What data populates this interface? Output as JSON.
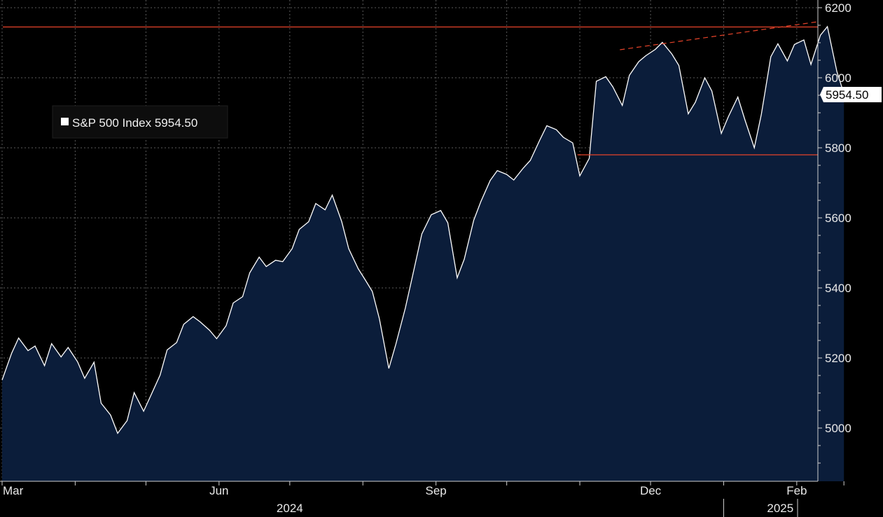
{
  "chart_data": {
    "type": "area",
    "title": "",
    "xlabel": "",
    "ylabel": "",
    "ylim": [
      4850,
      6200
    ],
    "yticks": [
      5000,
      5200,
      5400,
      5600,
      5800,
      6000,
      6200
    ],
    "ytick_labels": [
      "5000",
      "5200",
      "5400",
      "5600",
      "5800",
      "6000",
      "6200"
    ],
    "xrange": [
      "2024-03-01",
      "2025-02-21"
    ],
    "month_labels": [
      {
        "date": "2024-03-01",
        "label": "Mar"
      },
      {
        "date": "2024-06-01",
        "label": "Jun"
      },
      {
        "date": "2024-09-01",
        "label": "Sep"
      },
      {
        "date": "2024-12-01",
        "label": "Dec"
      },
      {
        "date": "2025-02-01",
        "label": "Feb"
      }
    ],
    "month_ticks": [
      "2024-03-01",
      "2024-04-01",
      "2024-05-01",
      "2024-06-01",
      "2024-07-01",
      "2024-08-01",
      "2024-09-01",
      "2024-10-01",
      "2024-11-01",
      "2024-12-01",
      "2025-01-01",
      "2025-02-01"
    ],
    "year_labels": [
      {
        "date": "2024-07-01",
        "label": "2024"
      },
      {
        "date": "2025-01-25",
        "label": "2025"
      }
    ],
    "year_divider": "2025-01-01",
    "grid": true,
    "legend": {
      "position": "top-left",
      "label": "S&P 500 Index 5954.50"
    },
    "last_value_label": "5954.50",
    "colors": {
      "background": "#000000",
      "line": "#ffffff",
      "fill": "#0b1d3a",
      "levels": "#e8442a",
      "grid": "#5a5a5a"
    },
    "series": [
      {
        "name": "S&P 500 Index",
        "x": [
          "2024-03-01",
          "2024-03-05",
          "2024-03-08",
          "2024-03-12",
          "2024-03-15",
          "2024-03-19",
          "2024-03-22",
          "2024-03-26",
          "2024-03-29",
          "2024-04-02",
          "2024-04-05",
          "2024-04-09",
          "2024-04-12",
          "2024-04-16",
          "2024-04-19",
          "2024-04-23",
          "2024-04-26",
          "2024-04-30",
          "2024-05-03",
          "2024-05-07",
          "2024-05-10",
          "2024-05-14",
          "2024-05-17",
          "2024-05-21",
          "2024-05-24",
          "2024-05-28",
          "2024-05-31",
          "2024-06-04",
          "2024-06-07",
          "2024-06-11",
          "2024-06-14",
          "2024-06-18",
          "2024-06-21",
          "2024-06-25",
          "2024-06-28",
          "2024-07-02",
          "2024-07-05",
          "2024-07-09",
          "2024-07-12",
          "2024-07-16",
          "2024-07-19",
          "2024-07-23",
          "2024-07-26",
          "2024-07-30",
          "2024-08-02",
          "2024-08-05",
          "2024-08-08",
          "2024-08-12",
          "2024-08-15",
          "2024-08-19",
          "2024-08-22",
          "2024-08-26",
          "2024-08-30",
          "2024-09-03",
          "2024-09-06",
          "2024-09-10",
          "2024-09-13",
          "2024-09-17",
          "2024-09-20",
          "2024-09-24",
          "2024-09-27",
          "2024-10-01",
          "2024-10-04",
          "2024-10-08",
          "2024-10-11",
          "2024-10-15",
          "2024-10-18",
          "2024-10-22",
          "2024-10-25",
          "2024-10-29",
          "2024-11-01",
          "2024-11-05",
          "2024-11-08",
          "2024-11-12",
          "2024-11-15",
          "2024-11-19",
          "2024-11-22",
          "2024-11-26",
          "2024-11-29",
          "2024-12-03",
          "2024-12-06",
          "2024-12-10",
          "2024-12-13",
          "2024-12-17",
          "2024-12-20",
          "2024-12-24",
          "2024-12-27",
          "2024-12-31",
          "2025-01-03",
          "2025-01-07",
          "2025-01-10",
          "2025-01-14",
          "2025-01-17",
          "2025-01-21",
          "2025-01-24",
          "2025-01-28",
          "2025-01-31",
          "2025-02-04",
          "2025-02-07",
          "2025-02-11",
          "2025-02-14",
          "2025-02-18",
          "2025-02-21"
        ],
        "values": [
          5137,
          5213,
          5257,
          5221,
          5234,
          5178,
          5241,
          5203,
          5230,
          5189,
          5142,
          5188,
          5071,
          5037,
          4985,
          5021,
          5101,
          5048,
          5092,
          5151,
          5223,
          5244,
          5296,
          5318,
          5303,
          5279,
          5255,
          5292,
          5357,
          5375,
          5443,
          5488,
          5461,
          5479,
          5475,
          5512,
          5567,
          5589,
          5641,
          5623,
          5665,
          5590,
          5512,
          5455,
          5423,
          5390,
          5312,
          5170,
          5240,
          5342,
          5432,
          5554,
          5609,
          5621,
          5586,
          5429,
          5482,
          5593,
          5646,
          5707,
          5735,
          5724,
          5708,
          5742,
          5764,
          5822,
          5863,
          5852,
          5830,
          5814,
          5720,
          5770,
          5990,
          6003,
          5974,
          5921,
          6007,
          6046,
          6063,
          6081,
          6101,
          6068,
          6035,
          5897,
          5930,
          6000,
          5962,
          5841,
          5889,
          5945,
          5880,
          5800,
          5896,
          6060,
          6097,
          6048,
          6095,
          6108,
          6038,
          6121,
          6146,
          6018,
          5954.5
        ]
      }
    ],
    "annotations": [
      {
        "type": "horizontal-line",
        "y": 6145
      },
      {
        "type": "horizontal-line",
        "x_start": "2024-10-31",
        "y": 5780
      },
      {
        "type": "trend-line",
        "x_start": "2024-11-18",
        "y_start": 6080,
        "x_end": "2025-02-28",
        "y_end": 6160
      }
    ]
  }
}
